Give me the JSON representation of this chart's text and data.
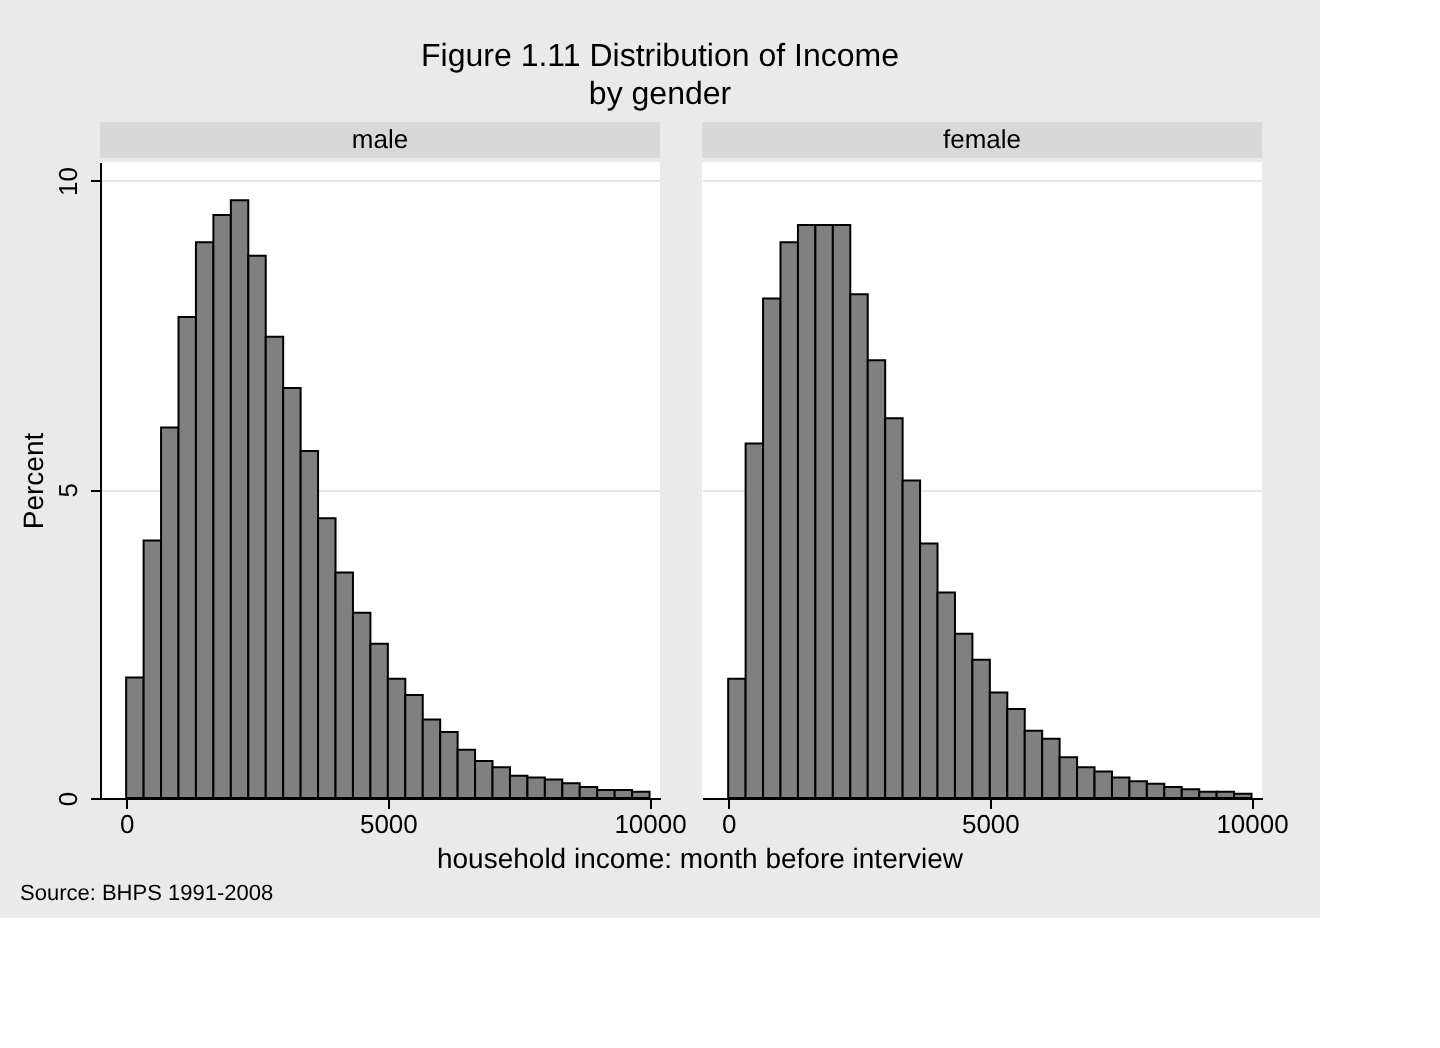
{
  "chart_data": [
    {
      "type": "histogram",
      "title": "male",
      "ylabel": "Percent",
      "xlabel": "household income: month before interview",
      "annotations": [
        "Figure 1.11 Distribution of Income",
        "by gender",
        "Source: BHPS 1991-2008"
      ],
      "bins": [
        0,
        333.3,
        666.7,
        1000,
        1333.3,
        1666.7,
        2000,
        2333.3,
        2666.7,
        3000,
        3333.3,
        3666.7,
        4000,
        4333.3,
        4666.7,
        5000,
        5333.3,
        5666.7,
        6000,
        6333.3,
        6666.7,
        7000,
        7333.3,
        7666.7,
        8000,
        8333.3,
        8666.7,
        9000,
        9333.3,
        9666.7,
        10000
      ],
      "values": [
        1.95,
        4.17,
        6.0,
        7.79,
        9.0,
        9.44,
        9.68,
        8.78,
        7.47,
        6.64,
        5.62,
        4.53,
        3.65,
        3.0,
        2.5,
        1.93,
        1.67,
        1.27,
        1.07,
        0.78,
        0.6,
        0.5,
        0.36,
        0.33,
        0.3,
        0.24,
        0.18,
        0.13,
        0.13,
        0.1
      ],
      "color": "#808080",
      "xlim": [
        -500,
        10200
      ],
      "ylim": [
        0,
        10.3
      ],
      "xticks": [
        0,
        5000,
        10000
      ],
      "yticks": [
        0,
        5,
        10
      ],
      "grid": "y"
    },
    {
      "type": "histogram",
      "title": "female",
      "tick_labels": "x",
      "bins": [
        0,
        333.3,
        666.7,
        1000,
        1333.3,
        1666.7,
        2000,
        2333.3,
        2666.7,
        3000,
        3333.3,
        3666.7,
        4000,
        4333.3,
        4666.7,
        5000,
        5333.3,
        5666.7,
        6000,
        6333.3,
        6666.7,
        7000,
        7333.3,
        7666.7,
        8000,
        8333.3,
        8666.7,
        9000,
        9333.3,
        9666.7,
        10000
      ],
      "values": [
        1.93,
        5.74,
        8.09,
        9.0,
        9.28,
        9.28,
        9.28,
        8.16,
        7.09,
        6.15,
        5.14,
        4.12,
        3.33,
        2.66,
        2.24,
        1.71,
        1.44,
        1.09,
        0.96,
        0.66,
        0.5,
        0.43,
        0.33,
        0.27,
        0.23,
        0.18,
        0.14,
        0.1,
        0.1,
        0.07
      ],
      "color": "#808080",
      "xlim": [
        -500,
        10200
      ],
      "ylim": [
        0,
        10.3
      ],
      "xticks": [
        0,
        5000,
        10000
      ],
      "yticks": [
        0,
        5,
        10
      ],
      "grid": "y"
    }
  ]
}
